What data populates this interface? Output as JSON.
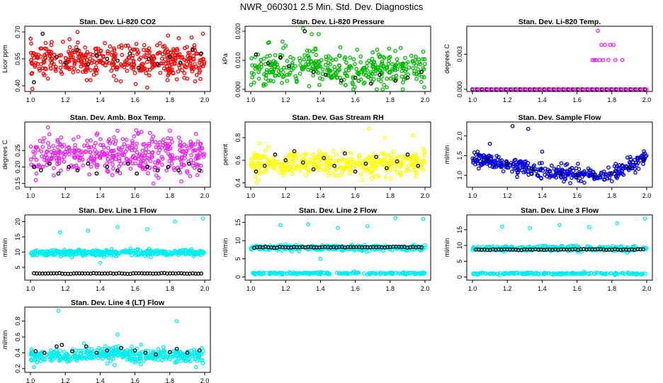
{
  "main_title": "NWR_060301  2.5 Min. Std. Dev. Diagnostics",
  "colors": {
    "red": "#ff0000",
    "green": "#00bb00",
    "magenta": "#ee22ee",
    "yellow": "#ffff00",
    "blue": "#0000dd",
    "cyan": "#00eeee",
    "black": "#000000"
  },
  "chart_data": [
    {
      "type": "scatter",
      "title": "Stan. Dev. Li-820 CO2",
      "ylabel": "Licor ppm",
      "color": "red",
      "xlim": [
        1.0,
        2.0
      ],
      "ylim": [
        0.38,
        0.72
      ],
      "xticks": [
        "1.0",
        "1.2",
        "1.4",
        "1.6",
        "1.8",
        "2.0"
      ],
      "xtick_values": [
        1.0,
        1.2,
        1.4,
        1.6,
        1.8,
        2.0
      ],
      "yticks": [
        "0.40",
        "0.55",
        "0.70"
      ],
      "ytick_values": [
        0.4,
        0.55,
        0.7
      ],
      "main": {
        "n": 420,
        "center": 0.54,
        "spread": 0.045
      },
      "black_points": [
        [
          1.02,
          0.42
        ],
        [
          1.07,
          0.69
        ],
        [
          1.15,
          0.56
        ],
        [
          1.2,
          0.53
        ],
        [
          1.27,
          0.6
        ],
        [
          1.33,
          0.52
        ],
        [
          1.38,
          0.57
        ],
        [
          1.44,
          0.55
        ],
        [
          1.5,
          0.54
        ],
        [
          1.57,
          0.58
        ],
        [
          1.62,
          0.5
        ],
        [
          1.68,
          0.55
        ],
        [
          1.73,
          0.52
        ],
        [
          1.8,
          0.56
        ],
        [
          1.86,
          0.53
        ],
        [
          1.93,
          0.6
        ],
        [
          1.98,
          0.58
        ]
      ],
      "outliers": [
        [
          1.27,
          0.7
        ],
        [
          1.67,
          0.39
        ],
        [
          1.79,
          0.68
        ],
        [
          1.99,
          0.69
        ],
        [
          1.1,
          0.44
        ]
      ]
    },
    {
      "type": "scatter",
      "title": "Stan. Dev. Li-820 Pressure",
      "ylabel": "kPa",
      "color": "green",
      "xlim": [
        1.0,
        2.0
      ],
      "ylim": [
        0.0,
        0.021
      ],
      "xticks": [
        "1.0",
        "1.2",
        "1.4",
        "1.6",
        "1.8",
        "2.0"
      ],
      "xtick_values": [
        1.0,
        1.2,
        1.4,
        1.6,
        1.8,
        2.0
      ],
      "yticks": [
        "0.000",
        "0.010",
        "0.020"
      ],
      "ytick_values": [
        0.0,
        0.01,
        0.02
      ],
      "main": {
        "n": 380,
        "center": 0.007,
        "spread": 0.003
      },
      "black_points": [
        [
          1.03,
          0.012
        ],
        [
          1.1,
          0.009
        ],
        [
          1.17,
          0.011
        ],
        [
          1.22,
          0.008
        ],
        [
          1.31,
          0.02
        ],
        [
          1.36,
          0.006
        ],
        [
          1.43,
          0.005
        ],
        [
          1.52,
          0.003
        ],
        [
          1.6,
          0.004
        ],
        [
          1.69,
          0.002
        ],
        [
          1.74,
          0.005
        ],
        [
          1.83,
          0.003
        ],
        [
          1.9,
          0.004
        ],
        [
          1.98,
          0.006
        ]
      ],
      "outliers": [
        [
          1.3,
          0.021
        ],
        [
          1.35,
          0.019
        ],
        [
          1.39,
          0.019
        ],
        [
          1.1,
          0.016
        ],
        [
          1.2,
          0.015
        ],
        [
          1.99,
          0.013
        ]
      ]
    },
    {
      "type": "scatter",
      "title": "Stan. Dev. Li-820 Temp.",
      "ylabel": "degrees C",
      "color": "magenta",
      "xlim": [
        1.0,
        2.0
      ],
      "ylim": [
        0.0,
        0.0052
      ],
      "xticks": [
        "1.0",
        "1.2",
        "1.4",
        "1.6",
        "1.8",
        "2.0"
      ],
      "xtick_values": [
        1.0,
        1.2,
        1.4,
        1.6,
        1.8,
        2.0
      ],
      "yticks": [
        "0.000",
        "0.003"
      ],
      "ytick_values": [
        0.0,
        0.003
      ],
      "baseline": 0.0,
      "upper_points": [
        [
          1.69,
          0.0025
        ],
        [
          1.7,
          0.0025
        ],
        [
          1.71,
          0.0025
        ],
        [
          1.72,
          0.005
        ],
        [
          1.73,
          0.0025
        ],
        [
          1.74,
          0.0038
        ],
        [
          1.75,
          0.0025
        ],
        [
          1.76,
          0.0038
        ],
        [
          1.78,
          0.0025
        ],
        [
          1.79,
          0.0038
        ],
        [
          1.81,
          0.0038
        ],
        [
          1.82,
          0.0025
        ],
        [
          1.86,
          0.0025
        ]
      ]
    },
    {
      "type": "scatter",
      "title": "Stan. Dev. Amb. Box Temp.",
      "ylabel": "degrees C",
      "color": "magenta",
      "xlim": [
        1.0,
        2.0
      ],
      "ylim": [
        0.145,
        0.33
      ],
      "xticks": [
        "1.0",
        "1.2",
        "1.4",
        "1.6",
        "1.8",
        "2.0"
      ],
      "xtick_values": [
        1.0,
        1.2,
        1.4,
        1.6,
        1.8,
        2.0
      ],
      "yticks": [
        "0.15",
        "0.20",
        "0.25"
      ],
      "ytick_values": [
        0.15,
        0.2,
        0.25
      ],
      "main": {
        "n": 420,
        "center": 0.235,
        "spread": 0.03
      },
      "black_points": [
        [
          1.02,
          0.2
        ],
        [
          1.06,
          0.19
        ],
        [
          1.11,
          0.21
        ],
        [
          1.16,
          0.18
        ],
        [
          1.22,
          0.2
        ],
        [
          1.27,
          0.19
        ],
        [
          1.33,
          0.21
        ],
        [
          1.38,
          0.18
        ],
        [
          1.44,
          0.2
        ],
        [
          1.5,
          0.19
        ],
        [
          1.56,
          0.21
        ],
        [
          1.61,
          0.18
        ],
        [
          1.67,
          0.2
        ],
        [
          1.73,
          0.19
        ],
        [
          1.79,
          0.2
        ],
        [
          1.85,
          0.19
        ],
        [
          1.91,
          0.21
        ],
        [
          1.97,
          0.19
        ]
      ],
      "outliers": [
        [
          1.1,
          0.32
        ],
        [
          1.5,
          0.31
        ],
        [
          1.8,
          0.31
        ],
        [
          1.95,
          0.3
        ],
        [
          1.03,
          0.16
        ]
      ]
    },
    {
      "type": "scatter",
      "title": "Stan. Dev. Gas Stream RH",
      "ylabel": "percent",
      "color": "yellow",
      "xlim": [
        1.0,
        2.0
      ],
      "ylim": [
        0.38,
        0.92
      ],
      "xticks": [
        "1.0",
        "1.2",
        "1.4",
        "1.6",
        "1.8",
        "2.0"
      ],
      "xtick_values": [
        1.0,
        1.2,
        1.4,
        1.6,
        1.8,
        2.0
      ],
      "yticks": [
        "0.4",
        "0.6",
        "0.8"
      ],
      "ytick_values": [
        0.4,
        0.6,
        0.8
      ],
      "main": {
        "n": 400,
        "center": 0.57,
        "spread": 0.05
      },
      "black_points": [
        [
          1.03,
          0.5
        ],
        [
          1.08,
          0.55
        ],
        [
          1.14,
          0.65
        ],
        [
          1.2,
          0.6
        ],
        [
          1.25,
          0.68
        ],
        [
          1.3,
          0.58
        ],
        [
          1.36,
          0.52
        ],
        [
          1.42,
          0.62
        ],
        [
          1.48,
          0.55
        ],
        [
          1.54,
          0.66
        ],
        [
          1.6,
          0.5
        ],
        [
          1.66,
          0.57
        ],
        [
          1.72,
          0.63
        ],
        [
          1.78,
          0.53
        ],
        [
          1.84,
          0.59
        ],
        [
          1.9,
          0.65
        ],
        [
          1.96,
          0.55
        ]
      ],
      "outliers": [
        [
          1.05,
          0.75
        ],
        [
          1.1,
          0.72
        ],
        [
          1.68,
          0.88
        ],
        [
          1.77,
          0.8
        ],
        [
          1.93,
          0.82
        ],
        [
          1.99,
          0.7
        ]
      ]
    },
    {
      "type": "scatter",
      "title": "Stan. Dev. Sample Flow",
      "ylabel": "ml/min",
      "color": "blue",
      "xlim": [
        1.0,
        2.0
      ],
      "ylim": [
        0.75,
        2.3
      ],
      "xticks": [
        "1.0",
        "1.2",
        "1.4",
        "1.6",
        "1.8",
        "2.0"
      ],
      "xtick_values": [
        1.0,
        1.2,
        1.4,
        1.6,
        1.8,
        2.0
      ],
      "yticks": [
        "1.0",
        "1.5",
        "2.0"
      ],
      "ytick_values": [
        1.0,
        1.5,
        2.0
      ],
      "trend": [
        [
          1.0,
          1.45
        ],
        [
          1.2,
          1.25
        ],
        [
          1.4,
          1.1
        ],
        [
          1.6,
          1.02
        ],
        [
          1.75,
          1.0
        ],
        [
          1.85,
          1.1
        ],
        [
          2.0,
          1.45
        ]
      ],
      "main": {
        "n": 380,
        "spread": 0.1
      },
      "black_points": [
        [
          1.08,
          1.4
        ],
        [
          1.2,
          1.3
        ],
        [
          1.35,
          1.15
        ],
        [
          1.5,
          1.05
        ],
        [
          1.6,
          1.0
        ],
        [
          1.7,
          1.0
        ],
        [
          1.8,
          1.05
        ],
        [
          1.9,
          1.2
        ],
        [
          1.98,
          1.4
        ]
      ],
      "outliers": [
        [
          1.23,
          2.25
        ],
        [
          1.32,
          2.18
        ],
        [
          1.1,
          1.8
        ],
        [
          1.4,
          1.6
        ],
        [
          1.8,
          0.85
        ]
      ]
    },
    {
      "type": "scatter",
      "title": "Stan. Dev. Line 1 Flow",
      "ylabel": "ml/min",
      "color": "cyan",
      "xlim": [
        1.0,
        2.0
      ],
      "ylim": [
        1.5,
        21.5
      ],
      "xticks": [
        "1.0",
        "1.2",
        "1.4",
        "1.6",
        "1.8",
        "2.0"
      ],
      "xtick_values": [
        1.0,
        1.2,
        1.4,
        1.6,
        1.8,
        2.0
      ],
      "yticks": [
        "5",
        "10",
        "15",
        "20"
      ],
      "ytick_values": [
        5,
        10,
        15,
        20
      ],
      "band": {
        "n": 420,
        "center": 9.8,
        "spread": 0.45
      },
      "black_line": {
        "y": 3.0,
        "n": 60
      },
      "outliers": [
        [
          1.17,
          16.5
        ],
        [
          1.33,
          17.0
        ],
        [
          1.5,
          18.2
        ],
        [
          1.67,
          17.5
        ],
        [
          1.83,
          20.0
        ],
        [
          1.99,
          21.0
        ],
        [
          1.4,
          6.5
        ]
      ]
    },
    {
      "type": "scatter",
      "title": "Stan. Dev. Line 2 Flow",
      "ylabel": "ml/min",
      "color": "cyan",
      "xlim": [
        1.0,
        2.0
      ],
      "ylim": [
        -0.3,
        16.5
      ],
      "xticks": [
        "1.0",
        "1.2",
        "1.4",
        "1.6",
        "1.8",
        "2.0"
      ],
      "xtick_values": [
        1.0,
        1.2,
        1.4,
        1.6,
        1.8,
        2.0
      ],
      "yticks": [
        "0",
        "5",
        "10",
        "15"
      ],
      "ytick_values": [
        0,
        5,
        10,
        15
      ],
      "band": {
        "n": 340,
        "center": 8.0,
        "spread": 0.35
      },
      "bottom_band": {
        "n": 200,
        "center": 1.0,
        "spread": 0.15
      },
      "black_line": {
        "y": 8.2,
        "n": 60
      },
      "outliers": [
        [
          1.17,
          14.3
        ],
        [
          1.33,
          14.5
        ],
        [
          1.5,
          13.5
        ],
        [
          1.67,
          14.0
        ],
        [
          1.83,
          16.2
        ],
        [
          1.99,
          16.0
        ],
        [
          1.4,
          5.0
        ]
      ]
    },
    {
      "type": "scatter",
      "title": "Stan. Dev. Line 3 Flow",
      "ylabel": "ml/min",
      "color": "cyan",
      "xlim": [
        1.0,
        2.0
      ],
      "ylim": [
        -0.3,
        19.0
      ],
      "xticks": [
        "1.0",
        "1.2",
        "1.4",
        "1.6",
        "1.8",
        "2.0"
      ],
      "xtick_values": [
        1.0,
        1.2,
        1.4,
        1.6,
        1.8,
        2.0
      ],
      "yticks": [
        "0",
        "5",
        "10",
        "15"
      ],
      "ytick_values": [
        0,
        5,
        10,
        15
      ],
      "band": {
        "n": 340,
        "center": 9.0,
        "spread": 0.4
      },
      "bottom_band": {
        "n": 200,
        "center": 1.1,
        "spread": 0.15
      },
      "black_line": {
        "y": 8.7,
        "n": 60
      },
      "outliers": [
        [
          1.17,
          16.0
        ],
        [
          1.33,
          15.5
        ],
        [
          1.5,
          16.5
        ],
        [
          1.67,
          15.8
        ],
        [
          1.83,
          17.0
        ],
        [
          1.99,
          18.5
        ]
      ]
    },
    {
      "type": "scatter",
      "title": "Stan. Dev. Line 4 (LT) Flow",
      "ylabel": "ml/min",
      "color": "cyan",
      "xlim": [
        1.0,
        2.0
      ],
      "ylim": [
        0.18,
        0.95
      ],
      "xticks": [
        "1.0",
        "1.2",
        "1.4",
        "1.6",
        "1.8",
        "2.0"
      ],
      "xtick_values": [
        1.0,
        1.2,
        1.4,
        1.6,
        1.8,
        2.0
      ],
      "yticks": [
        "0.2",
        "0.4",
        "0.6",
        "0.8"
      ],
      "ytick_values": [
        0.2,
        0.4,
        0.6,
        0.8
      ],
      "main": {
        "n": 420,
        "center": 0.37,
        "spread": 0.045
      },
      "black_points": [
        [
          1.03,
          0.42
        ],
        [
          1.08,
          0.4
        ],
        [
          1.15,
          0.48
        ],
        [
          1.18,
          0.5
        ],
        [
          1.24,
          0.42
        ],
        [
          1.32,
          0.48
        ],
        [
          1.38,
          0.4
        ],
        [
          1.44,
          0.43
        ],
        [
          1.52,
          0.46
        ],
        [
          1.6,
          0.43
        ],
        [
          1.66,
          0.4
        ],
        [
          1.72,
          0.38
        ],
        [
          1.8,
          0.41
        ],
        [
          1.84,
          0.45
        ],
        [
          1.9,
          0.4
        ],
        [
          1.97,
          0.43
        ]
      ],
      "outliers": [
        [
          1.16,
          0.93
        ],
        [
          1.5,
          0.63
        ],
        [
          1.84,
          0.8
        ],
        [
          1.02,
          0.22
        ],
        [
          1.95,
          0.22
        ]
      ]
    }
  ]
}
